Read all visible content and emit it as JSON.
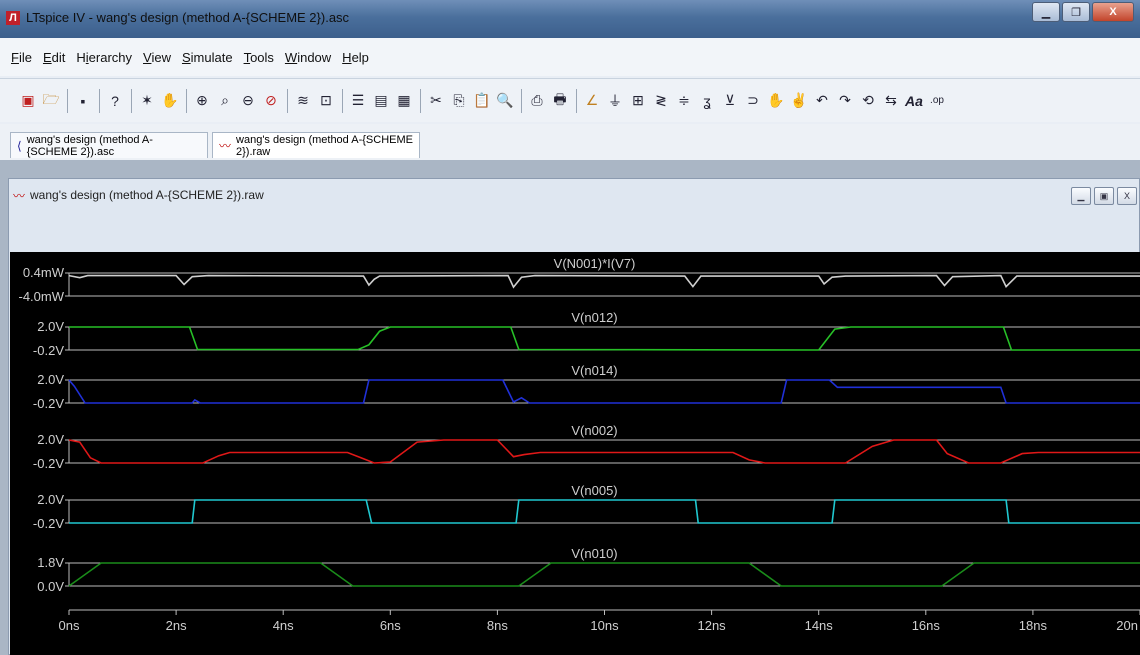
{
  "window": {
    "title": "LTspice IV - wang's design (method A-{SCHEME 2}).asc",
    "app_icon": "ltspice-icon"
  },
  "menu": [
    {
      "key": "F",
      "rest": "ile"
    },
    {
      "key": "E",
      "rest": "dit"
    },
    {
      "pre": "H",
      "key": "i",
      "rest": "erarchy"
    },
    {
      "key": "V",
      "rest": "iew"
    },
    {
      "key": "S",
      "rest": "imulate"
    },
    {
      "key": "T",
      "rest": "ools"
    },
    {
      "key": "W",
      "rest": "indow"
    },
    {
      "key": "H",
      "rest": "elp"
    }
  ],
  "tabs": [
    {
      "label": "wang's design (method A-{SCHEME 2}).asc",
      "icon": "schematic-icon"
    },
    {
      "label": "wang's design (method A-{SCHEME 2}).raw",
      "icon": "waveform-icon"
    }
  ],
  "child_window": {
    "title": "wang's design (method A-{SCHEME 2}).raw"
  },
  "colors": {
    "background": "#000000",
    "grid": "#cfcfcf"
  },
  "chart_data": {
    "type": "line",
    "xlabel": "",
    "xlim": [
      0,
      20
    ],
    "x_ticks": [
      "0ns",
      "2ns",
      "4ns",
      "6ns",
      "8ns",
      "10ns",
      "12ns",
      "14ns",
      "16ns",
      "18ns",
      "20n"
    ],
    "panes": [
      {
        "name": "V(N001)*I(V7)",
        "color": "#cfcfcf",
        "ylim": [
          -4.0,
          0.4
        ],
        "y_ticks": [
          "0.4mW",
          "-4.0mW"
        ],
        "points": [
          [
            0,
            -0.1
          ],
          [
            0.2,
            -0.5
          ],
          [
            0.35,
            -0.1
          ],
          [
            2.0,
            -0.1
          ],
          [
            2.15,
            -1.8
          ],
          [
            2.3,
            -0.3
          ],
          [
            2.6,
            -0.1
          ],
          [
            5.5,
            -0.2
          ],
          [
            5.6,
            -1.9
          ],
          [
            5.7,
            -0.8
          ],
          [
            5.8,
            -0.2
          ],
          [
            8.2,
            -0.1
          ],
          [
            8.3,
            -2.3
          ],
          [
            8.45,
            -0.4
          ],
          [
            8.7,
            -0.1
          ],
          [
            11.5,
            -0.2
          ],
          [
            11.65,
            -2.2
          ],
          [
            11.8,
            -0.2
          ],
          [
            14.0,
            -0.2
          ],
          [
            14.1,
            -1.7
          ],
          [
            14.25,
            -0.4
          ],
          [
            14.5,
            -0.2
          ],
          [
            16.2,
            -0.1
          ],
          [
            16.35,
            -2.0
          ],
          [
            16.5,
            -0.3
          ],
          [
            17.4,
            -0.1
          ],
          [
            17.5,
            -2.2
          ],
          [
            17.7,
            -0.2
          ],
          [
            20,
            -0.2
          ]
        ]
      },
      {
        "name": "V(n012)",
        "color": "#27c027",
        "ylim": [
          -0.2,
          2.0
        ],
        "y_ticks": [
          "2.0V",
          "-0.2V"
        ],
        "points": [
          [
            0,
            2.0
          ],
          [
            2.25,
            2.0
          ],
          [
            2.4,
            -0.15
          ],
          [
            5.4,
            -0.15
          ],
          [
            5.6,
            0.3
          ],
          [
            5.8,
            1.6
          ],
          [
            6.0,
            2.0
          ],
          [
            8.25,
            2.0
          ],
          [
            8.4,
            -0.15
          ],
          [
            14.0,
            -0.2
          ],
          [
            14.3,
            1.8
          ],
          [
            14.6,
            2.0
          ],
          [
            17.45,
            2.0
          ],
          [
            17.6,
            -0.2
          ],
          [
            20,
            -0.2
          ]
        ]
      },
      {
        "name": "V(n014)",
        "color": "#2030d8",
        "ylim": [
          -0.2,
          2.0
        ],
        "y_ticks": [
          "2.0V",
          "-0.2V"
        ],
        "points": [
          [
            0,
            2.0
          ],
          [
            0.1,
            1.4
          ],
          [
            0.3,
            -0.2
          ],
          [
            2.3,
            -0.2
          ],
          [
            2.35,
            0.1
          ],
          [
            2.45,
            -0.2
          ],
          [
            5.5,
            -0.2
          ],
          [
            5.6,
            2.0
          ],
          [
            8.1,
            2.0
          ],
          [
            8.3,
            -0.1
          ],
          [
            8.45,
            0.3
          ],
          [
            8.6,
            -0.2
          ],
          [
            13.3,
            -0.2
          ],
          [
            13.4,
            2.0
          ],
          [
            14.2,
            2.0
          ],
          [
            14.35,
            1.3
          ],
          [
            17.4,
            1.3
          ],
          [
            17.5,
            -0.2
          ],
          [
            20,
            -0.2
          ]
        ]
      },
      {
        "name": "V(n002)",
        "color": "#e01818",
        "ylim": [
          -0.2,
          2.0
        ],
        "y_ticks": [
          "2.0V",
          "-0.2V"
        ],
        "points": [
          [
            0,
            2.0
          ],
          [
            0.2,
            1.8
          ],
          [
            0.4,
            0.3
          ],
          [
            0.6,
            -0.2
          ],
          [
            2.5,
            -0.2
          ],
          [
            2.8,
            0.5
          ],
          [
            3.0,
            0.8
          ],
          [
            5.2,
            0.8
          ],
          [
            5.5,
            0.2
          ],
          [
            5.7,
            -0.2
          ],
          [
            6.0,
            -0.1
          ],
          [
            6.5,
            1.8
          ],
          [
            7.0,
            2.0
          ],
          [
            8.0,
            2.0
          ],
          [
            8.3,
            0.4
          ],
          [
            8.5,
            0.6
          ],
          [
            8.8,
            0.8
          ],
          [
            12.4,
            0.8
          ],
          [
            12.7,
            0.1
          ],
          [
            13.0,
            -0.2
          ],
          [
            14.5,
            -0.2
          ],
          [
            15.0,
            1.4
          ],
          [
            15.4,
            2.0
          ],
          [
            16.2,
            2.0
          ],
          [
            16.4,
            0.7
          ],
          [
            16.8,
            -0.2
          ],
          [
            17.4,
            -0.2
          ],
          [
            17.8,
            0.7
          ],
          [
            18.1,
            0.8
          ],
          [
            20,
            0.8
          ]
        ]
      },
      {
        "name": "V(n005)",
        "color": "#20c8d0",
        "ylim": [
          -0.2,
          2.0
        ],
        "y_ticks": [
          "2.0V",
          "-0.2V"
        ],
        "points": [
          [
            0,
            -0.2
          ],
          [
            2.3,
            -0.2
          ],
          [
            2.35,
            2.0
          ],
          [
            5.55,
            2.0
          ],
          [
            5.65,
            -0.2
          ],
          [
            8.35,
            -0.2
          ],
          [
            8.4,
            2.0
          ],
          [
            11.7,
            2.0
          ],
          [
            11.75,
            -0.2
          ],
          [
            14.25,
            -0.2
          ],
          [
            14.3,
            2.0
          ],
          [
            17.5,
            2.0
          ],
          [
            17.55,
            -0.2
          ],
          [
            20,
            -0.2
          ]
        ]
      },
      {
        "name": "V(n010)",
        "color": "#1a8c1a",
        "ylim": [
          0.0,
          1.8
        ],
        "y_ticks": [
          "1.8V",
          "0.0V"
        ],
        "points": [
          [
            0,
            0.0
          ],
          [
            0.6,
            1.8
          ],
          [
            4.7,
            1.8
          ],
          [
            5.3,
            0.0
          ],
          [
            8.4,
            0.0
          ],
          [
            9.0,
            1.8
          ],
          [
            12.7,
            1.8
          ],
          [
            13.3,
            0.0
          ],
          [
            16.3,
            0.0
          ],
          [
            16.9,
            1.8
          ],
          [
            20,
            1.8
          ]
        ]
      }
    ]
  }
}
